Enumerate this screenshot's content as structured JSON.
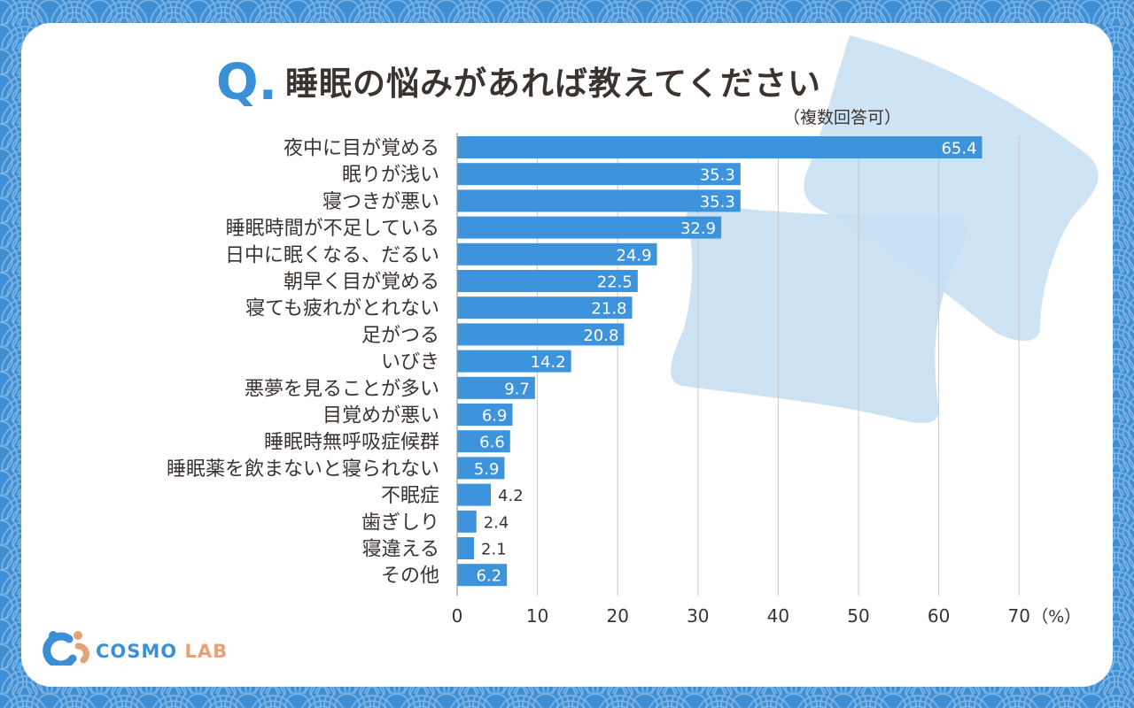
{
  "header": {
    "q_letter": "Q.",
    "title": "睡眠の悩みがあれば教えてください",
    "subtitle": "（複数回答可）"
  },
  "brand": {
    "name_part1": "COSMO",
    "name_part2": "LAB"
  },
  "colors": {
    "bar": "#3d93dc",
    "accent": "#3b8fd6",
    "pattern_bg": "#3f8fd4",
    "text": "#3a3330",
    "pillow": "#c6dff2"
  },
  "chart_data": {
    "type": "bar",
    "orientation": "horizontal",
    "title": "睡眠の悩みがあれば教えてください",
    "categories": [
      "夜中に目が覚める",
      "眠りが浅い",
      "寝つきが悪い",
      "睡眠時間が不足している",
      "日中に眠くなる、だるい",
      "朝早く目が覚める",
      "寝ても疲れがとれない",
      "足がつる",
      "いびき",
      "悪夢を見ることが多い",
      "目覚めが悪い",
      "睡眠時無呼吸症候群",
      "睡眠薬を飲まないと寝られない",
      "不眠症",
      "歯ぎしり",
      "寝違える",
      "その他"
    ],
    "values": [
      65.4,
      35.3,
      35.3,
      32.9,
      24.9,
      22.5,
      21.8,
      20.8,
      14.2,
      9.7,
      6.9,
      6.6,
      5.9,
      4.2,
      2.4,
      2.1,
      6.2
    ],
    "value_labels": [
      "65.4",
      "35.3",
      "35.3",
      "32.9",
      "24.9",
      "22.5",
      "21.8",
      "20.8",
      "14.2",
      "9.7",
      "6.9",
      "6.6",
      "5.9",
      "4.2",
      "2.4",
      "2.1",
      "6.2"
    ],
    "xlim": [
      0,
      70
    ],
    "ticks": [
      "0",
      "10",
      "20",
      "30",
      "40",
      "50",
      "60",
      "70"
    ],
    "tick_values": [
      0,
      10,
      20,
      30,
      40,
      50,
      60,
      70
    ],
    "unit_label": "（%）",
    "grid": true
  }
}
